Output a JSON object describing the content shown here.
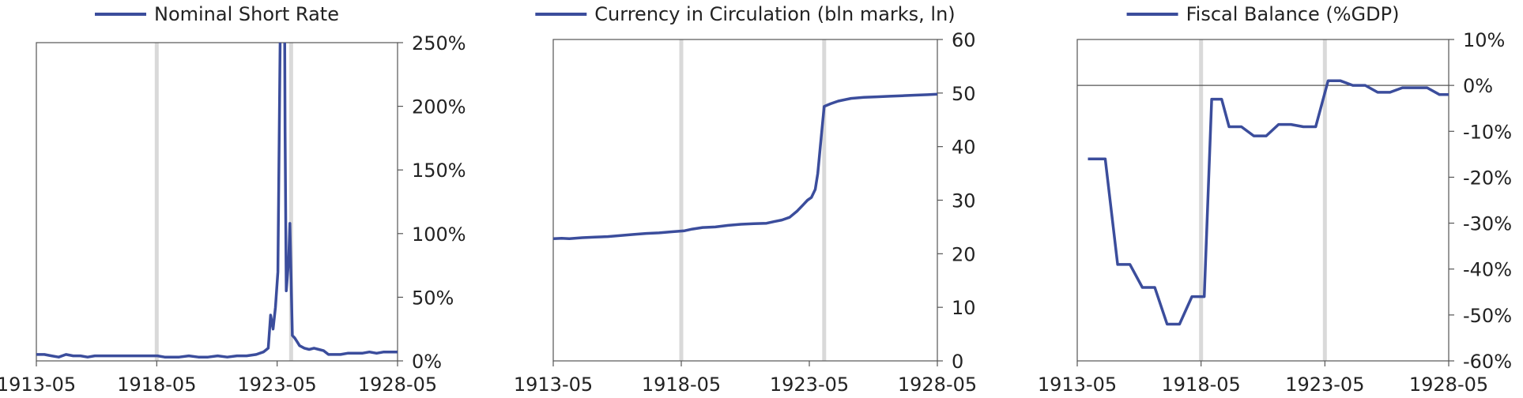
{
  "colors": {
    "series": "#3b4d9c",
    "marker": "#d9d9d9",
    "axis": "#555555",
    "text": "#222222"
  },
  "chart_data": [
    {
      "type": "line",
      "legend": "Nominal Short Rate",
      "legend_position": "top-center",
      "y_axis_side": "right",
      "y_format": "percent",
      "xlim": [
        1913.37,
        1928.37
      ],
      "ylim": [
        0,
        250
      ],
      "x_ticks": [
        {
          "value": 1913.37,
          "label": "1913-05"
        },
        {
          "value": 1918.37,
          "label": "1918-05"
        },
        {
          "value": 1923.37,
          "label": "1923-05"
        },
        {
          "value": 1928.37,
          "label": "1928-05"
        }
      ],
      "y_ticks": [
        {
          "value": 0,
          "label": "0%"
        },
        {
          "value": 50,
          "label": "50%"
        },
        {
          "value": 100,
          "label": "100%"
        },
        {
          "value": 150,
          "label": "150%"
        },
        {
          "value": 200,
          "label": "200%"
        },
        {
          "value": 250,
          "label": "250%"
        }
      ],
      "markers": [
        1918.37,
        1923.95
      ],
      "clip_to_plot": true,
      "x": [
        1913.37,
        1913.7,
        1914.0,
        1914.3,
        1914.6,
        1914.9,
        1915.2,
        1915.5,
        1915.8,
        1916.2,
        1916.6,
        1917.0,
        1917.5,
        1918.0,
        1918.4,
        1918.7,
        1919.0,
        1919.3,
        1919.7,
        1920.1,
        1920.5,
        1920.9,
        1921.3,
        1921.7,
        1922.1,
        1922.5,
        1922.8,
        1923.0,
        1923.1,
        1923.2,
        1923.3,
        1923.4,
        1923.5,
        1923.55,
        1923.65,
        1923.7,
        1923.75,
        1923.85,
        1923.9,
        1924.0,
        1924.1,
        1924.2,
        1924.3,
        1924.5,
        1924.7,
        1924.9,
        1925.1,
        1925.3,
        1925.5,
        1925.7,
        1926.0,
        1926.3,
        1926.6,
        1926.9,
        1927.2,
        1927.5,
        1927.8,
        1928.1,
        1928.37
      ],
      "values": [
        5,
        5,
        4,
        3,
        5,
        4,
        4,
        3,
        4,
        4,
        4,
        4,
        4,
        4,
        4,
        3,
        3,
        3,
        4,
        3,
        3,
        4,
        3,
        4,
        4,
        5,
        7,
        10,
        36,
        25,
        42,
        70,
        260,
        400,
        400,
        180,
        55,
        80,
        108,
        20,
        18,
        15,
        12,
        10,
        9,
        10,
        9,
        8,
        5,
        5,
        5,
        6,
        6,
        6,
        7,
        6,
        7,
        7,
        7
      ]
    },
    {
      "type": "line",
      "legend": "Currency in Circulation (bln marks, ln)",
      "legend_position": "top-center",
      "y_axis_side": "right",
      "y_format": "number",
      "xlim": [
        1913.37,
        1928.37
      ],
      "ylim": [
        0,
        60
      ],
      "x_ticks": [
        {
          "value": 1913.37,
          "label": "1913-05"
        },
        {
          "value": 1918.37,
          "label": "1918-05"
        },
        {
          "value": 1923.37,
          "label": "1923-05"
        },
        {
          "value": 1928.37,
          "label": "1928-05"
        }
      ],
      "y_ticks": [
        {
          "value": 0,
          "label": "0"
        },
        {
          "value": 10,
          "label": "10"
        },
        {
          "value": 20,
          "label": "20"
        },
        {
          "value": 30,
          "label": "30"
        },
        {
          "value": 40,
          "label": "40"
        },
        {
          "value": 50,
          "label": "50"
        },
        {
          "value": 60,
          "label": "60"
        }
      ],
      "markers": [
        1918.37,
        1923.95
      ],
      "clip_to_plot": true,
      "x": [
        1913.37,
        1913.7,
        1914.0,
        1914.5,
        1915.0,
        1915.5,
        1916.0,
        1916.5,
        1917.0,
        1917.5,
        1918.0,
        1918.5,
        1918.8,
        1919.2,
        1919.7,
        1920.2,
        1920.7,
        1921.2,
        1921.7,
        1922.0,
        1922.3,
        1922.6,
        1922.9,
        1923.1,
        1923.3,
        1923.45,
        1923.6,
        1923.7,
        1923.8,
        1923.95,
        1924.2,
        1924.5,
        1925.0,
        1925.5,
        1926.0,
        1926.5,
        1927.0,
        1927.5,
        1928.0,
        1928.37
      ],
      "values": [
        22.8,
        22.9,
        22.8,
        23.0,
        23.1,
        23.2,
        23.4,
        23.6,
        23.8,
        23.9,
        24.1,
        24.3,
        24.6,
        24.9,
        25.0,
        25.3,
        25.5,
        25.6,
        25.7,
        26.0,
        26.3,
        26.8,
        28.0,
        29.0,
        30.0,
        30.5,
        32.0,
        35.0,
        40.0,
        47.5,
        48.0,
        48.5,
        49.0,
        49.2,
        49.3,
        49.4,
        49.5,
        49.6,
        49.7,
        49.8
      ]
    },
    {
      "type": "line",
      "legend": "Fiscal Balance (%GDP)",
      "legend_position": "top-center",
      "y_axis_side": "right",
      "y_format": "percent",
      "xlim": [
        1913.37,
        1928.37
      ],
      "ylim": [
        -60,
        10
      ],
      "x_ticks": [
        {
          "value": 1913.37,
          "label": "1913-05"
        },
        {
          "value": 1918.37,
          "label": "1918-05"
        },
        {
          "value": 1923.37,
          "label": "1923-05"
        },
        {
          "value": 1928.37,
          "label": "1928-05"
        }
      ],
      "y_ticks": [
        {
          "value": -60,
          "label": "-60%"
        },
        {
          "value": -50,
          "label": "-50%"
        },
        {
          "value": -40,
          "label": "-40%"
        },
        {
          "value": -30,
          "label": "-30%"
        },
        {
          "value": -20,
          "label": "-20%"
        },
        {
          "value": -10,
          "label": "-10%"
        },
        {
          "value": 0,
          "label": "0%"
        },
        {
          "value": 10,
          "label": "10%"
        }
      ],
      "markers": [
        1918.37,
        1923.37
      ],
      "zero_line": true,
      "clip_to_plot": true,
      "x": [
        1913.8,
        1914.5,
        1915.0,
        1915.5,
        1916.0,
        1916.5,
        1917.0,
        1917.5,
        1918.0,
        1918.5,
        1918.8,
        1919.2,
        1919.5,
        1920.0,
        1920.5,
        1921.0,
        1921.5,
        1922.0,
        1922.5,
        1923.0,
        1923.5,
        1924.0,
        1924.5,
        1925.0,
        1925.5,
        1926.0,
        1926.5,
        1927.0,
        1927.5,
        1928.0,
        1928.37
      ],
      "values": [
        -16,
        -16,
        -39,
        -39,
        -44,
        -44,
        -52,
        -52,
        -46,
        -46,
        -3,
        -3,
        -9,
        -9,
        -11,
        -11,
        -8.5,
        -8.5,
        -9,
        -9,
        1,
        1,
        0,
        0,
        -1.5,
        -1.5,
        -0.5,
        -0.5,
        -0.5,
        -2,
        -2
      ]
    }
  ]
}
